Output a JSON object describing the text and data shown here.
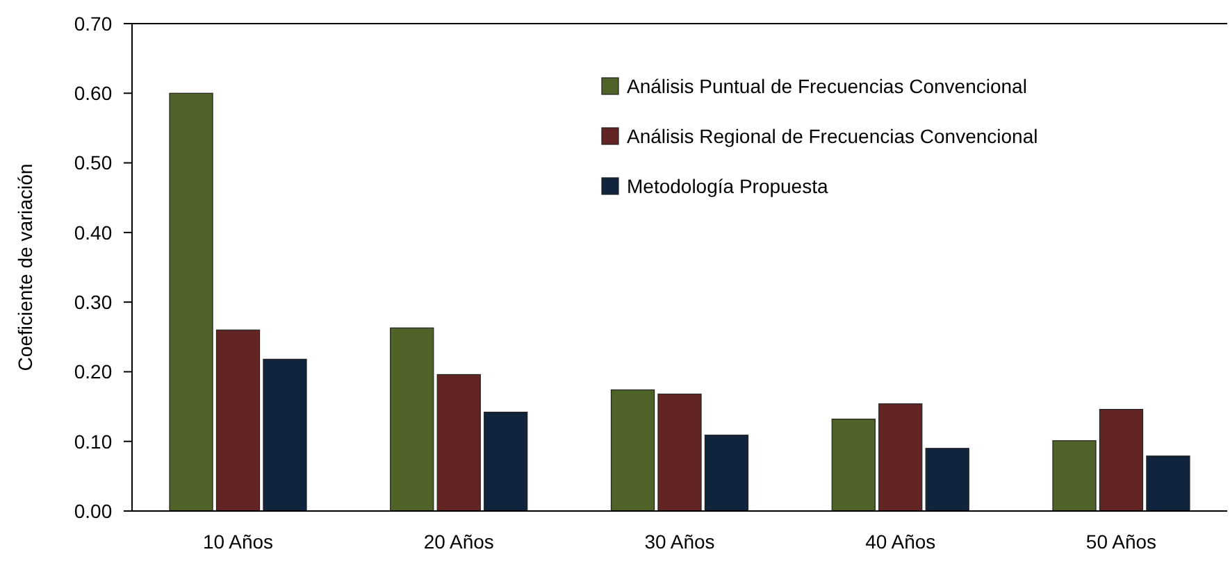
{
  "chart_data": {
    "type": "bar",
    "ylabel": "Coeficiente de variación",
    "categories": [
      "10 Años",
      "20 Años",
      "30 Años",
      "40 Años",
      "50 Años"
    ],
    "series": [
      {
        "name": "Análisis Puntual de Frecuencias Convencional",
        "color": "#4f6228",
        "values": [
          0.6,
          0.263,
          0.174,
          0.132,
          0.101
        ]
      },
      {
        "name": "Análisis Regional de Frecuencias Convencional",
        "color": "#632523",
        "values": [
          0.26,
          0.196,
          0.168,
          0.154,
          0.146
        ]
      },
      {
        "name": "Metodología Propuesta",
        "color": "#10243e",
        "values": [
          0.218,
          0.142,
          0.109,
          0.09,
          0.079
        ]
      }
    ],
    "ylim": [
      0,
      0.7
    ],
    "yticks": [
      {
        "value": 0,
        "label": "0.00"
      },
      {
        "value": 0.1,
        "label": "0.10"
      },
      {
        "value": 0.2,
        "label": "0.20"
      },
      {
        "value": 0.3,
        "label": "0.30"
      },
      {
        "value": 0.4,
        "label": "0.40"
      },
      {
        "value": 0.5,
        "label": "0.50"
      },
      {
        "value": 0.6,
        "label": "0.60"
      },
      {
        "value": 0.7,
        "label": "0.70"
      }
    ],
    "grid": false,
    "legend": "top right"
  }
}
